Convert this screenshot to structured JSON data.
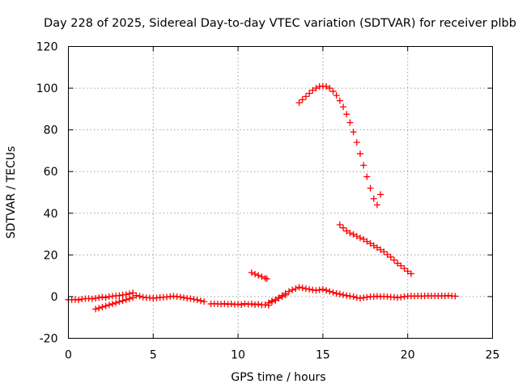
{
  "chart_data": {
    "type": "scatter",
    "title": "Day 228 of 2025, Sidereal Day-to-day VTEC variation (SDTVAR) for receiver plbb",
    "xlabel": "GPS time / hours",
    "ylabel": "SDTVAR / TECUs",
    "xlim": [
      0,
      25
    ],
    "ylim": [
      -20,
      120
    ],
    "xticks": [
      "0",
      "5",
      "10",
      "15",
      "20",
      "25"
    ],
    "yticks": [
      "-20",
      "0",
      "20",
      "40",
      "60",
      "80",
      "100",
      "120"
    ],
    "grid": true,
    "marker": "plus",
    "color": "#ff0000",
    "series": [
      {
        "points": [
          [
            0.0,
            -1.5
          ],
          [
            0.2,
            -1.5
          ],
          [
            0.4,
            -1.4
          ],
          [
            0.6,
            -1.6
          ],
          [
            0.8,
            -1.2
          ],
          [
            1.0,
            -1.0
          ],
          [
            1.2,
            -0.9
          ],
          [
            1.4,
            -1.1
          ],
          [
            1.6,
            -0.8
          ],
          [
            1.8,
            -0.5
          ],
          [
            2.0,
            -0.2
          ],
          [
            2.2,
            -0.5
          ],
          [
            2.4,
            0.0
          ],
          [
            2.6,
            0.2
          ],
          [
            2.8,
            0.4
          ],
          [
            3.0,
            0.5
          ],
          [
            3.2,
            0.8
          ],
          [
            3.4,
            1.0
          ],
          [
            3.6,
            1.4
          ],
          [
            3.8,
            1.8
          ],
          [
            4.0,
            0.5
          ],
          [
            4.2,
            0.2
          ],
          [
            4.4,
            -0.3
          ],
          [
            4.6,
            -0.5
          ],
          [
            4.8,
            -0.6
          ],
          [
            5.0,
            -0.8
          ],
          [
            5.2,
            -0.6
          ],
          [
            5.4,
            -0.4
          ],
          [
            5.6,
            -0.3
          ],
          [
            5.8,
            -0.2
          ],
          [
            6.0,
            0.0
          ],
          [
            6.2,
            0.2
          ],
          [
            6.4,
            0.0
          ],
          [
            6.6,
            -0.2
          ],
          [
            6.8,
            -0.5
          ],
          [
            7.0,
            -0.8
          ],
          [
            7.2,
            -1.0
          ],
          [
            7.4,
            -1.3
          ],
          [
            7.6,
            -1.6
          ],
          [
            7.8,
            -2.0
          ],
          [
            8.0,
            -2.4
          ],
          [
            8.4,
            -3.5
          ],
          [
            8.6,
            -3.4
          ],
          [
            8.8,
            -3.5
          ],
          [
            9.0,
            -3.6
          ],
          [
            9.2,
            -3.4
          ],
          [
            9.4,
            -3.7
          ],
          [
            9.6,
            -3.5
          ],
          [
            9.8,
            -3.8
          ],
          [
            10.0,
            -3.6
          ],
          [
            10.2,
            -3.9
          ],
          [
            10.4,
            -3.4
          ],
          [
            10.6,
            -3.7
          ],
          [
            10.8,
            -3.5
          ],
          [
            11.0,
            -3.9
          ],
          [
            11.2,
            -3.6
          ],
          [
            11.4,
            -4.0
          ],
          [
            11.6,
            -3.9
          ],
          [
            11.8,
            -4.2
          ],
          [
            12.0,
            -2.5
          ],
          [
            12.2,
            -1.8
          ],
          [
            12.4,
            -0.5
          ],
          [
            12.6,
            0.5
          ],
          [
            12.8,
            1.5
          ],
          [
            13.0,
            2.5
          ],
          [
            13.2,
            3.2
          ],
          [
            13.4,
            3.8
          ],
          [
            13.6,
            4.5
          ],
          [
            13.8,
            4.2
          ],
          [
            14.0,
            3.8
          ],
          [
            14.2,
            3.5
          ],
          [
            14.4,
            3.2
          ],
          [
            14.6,
            3.0
          ],
          [
            14.8,
            3.2
          ],
          [
            15.0,
            3.5
          ],
          [
            15.2,
            3.0
          ],
          [
            15.4,
            2.5
          ],
          [
            15.6,
            2.0
          ],
          [
            15.8,
            1.5
          ],
          [
            16.0,
            1.2
          ],
          [
            16.2,
            0.8
          ],
          [
            16.4,
            0.5
          ],
          [
            16.6,
            0.2
          ],
          [
            16.8,
            0.0
          ],
          [
            17.0,
            -0.5
          ],
          [
            17.2,
            -0.8
          ],
          [
            17.4,
            -0.5
          ],
          [
            17.6,
            -0.3
          ],
          [
            17.8,
            0.0
          ],
          [
            18.0,
            0.0
          ],
          [
            18.2,
            0.2
          ],
          [
            18.4,
            0.0
          ],
          [
            18.6,
            0.1
          ],
          [
            18.8,
            0.0
          ],
          [
            19.0,
            -0.2
          ],
          [
            19.2,
            -0.3
          ],
          [
            19.4,
            -0.5
          ],
          [
            19.6,
            -0.3
          ],
          [
            19.8,
            0.0
          ],
          [
            20.0,
            0.2
          ],
          [
            20.2,
            0.3
          ],
          [
            20.4,
            0.2
          ],
          [
            20.6,
            0.3
          ],
          [
            20.8,
            0.2
          ],
          [
            21.0,
            0.3
          ],
          [
            21.2,
            0.4
          ],
          [
            21.4,
            0.3
          ],
          [
            21.6,
            0.4
          ],
          [
            21.8,
            0.3
          ],
          [
            22.0,
            0.4
          ],
          [
            22.2,
            0.3
          ],
          [
            22.4,
            0.5
          ],
          [
            22.6,
            0.3
          ],
          [
            22.8,
            0.2
          ]
        ]
      },
      {
        "points": [
          [
            1.6,
            -6.0
          ],
          [
            1.8,
            -5.5
          ],
          [
            2.0,
            -5.0
          ],
          [
            2.2,
            -4.5
          ],
          [
            2.4,
            -4.0
          ],
          [
            2.6,
            -3.5
          ],
          [
            2.8,
            -3.0
          ],
          [
            3.0,
            -2.5
          ],
          [
            3.2,
            -2.0
          ],
          [
            3.4,
            -1.5
          ],
          [
            3.6,
            -1.0
          ],
          [
            3.8,
            -0.5
          ]
        ]
      },
      {
        "points": [
          [
            11.8,
            -3.0
          ],
          [
            12.0,
            -2.0
          ],
          [
            12.2,
            -1.5
          ],
          [
            12.4,
            -0.8
          ],
          [
            12.6,
            0.0
          ],
          [
            12.8,
            0.8
          ]
        ]
      },
      {
        "points": [
          [
            10.8,
            11.5
          ],
          [
            11.0,
            10.8
          ],
          [
            11.2,
            10.2
          ],
          [
            11.4,
            9.5
          ],
          [
            11.6,
            8.8
          ],
          [
            11.7,
            8.5
          ]
        ]
      },
      {
        "points": [
          [
            13.6,
            93.0
          ],
          [
            13.8,
            94.5
          ],
          [
            14.0,
            96.0
          ],
          [
            14.2,
            97.5
          ],
          [
            14.4,
            99.0
          ],
          [
            14.6,
            100.0
          ],
          [
            14.8,
            100.8
          ],
          [
            15.0,
            101.0
          ],
          [
            15.2,
            100.8
          ],
          [
            15.4,
            100.0
          ],
          [
            15.6,
            98.5
          ],
          [
            15.8,
            96.5
          ],
          [
            16.0,
            94.0
          ],
          [
            16.2,
            91.0
          ],
          [
            16.4,
            87.5
          ],
          [
            16.6,
            83.5
          ],
          [
            16.8,
            79.0
          ],
          [
            17.0,
            74.0
          ],
          [
            17.2,
            68.5
          ],
          [
            17.4,
            63.0
          ],
          [
            17.6,
            57.5
          ],
          [
            17.8,
            52.0
          ],
          [
            18.0,
            47.0
          ],
          [
            18.2,
            44.0
          ],
          [
            18.4,
            49.0
          ]
        ]
      },
      {
        "points": [
          [
            16.0,
            34.5
          ],
          [
            16.2,
            33.0
          ],
          [
            16.4,
            31.5
          ],
          [
            16.6,
            30.5
          ],
          [
            16.8,
            29.8
          ],
          [
            17.0,
            29.0
          ],
          [
            17.2,
            28.2
          ],
          [
            17.4,
            27.5
          ],
          [
            17.6,
            26.5
          ],
          [
            17.8,
            25.5
          ],
          [
            18.0,
            24.5
          ],
          [
            18.2,
            23.5
          ],
          [
            18.4,
            22.5
          ],
          [
            18.6,
            21.5
          ],
          [
            18.8,
            20.2
          ],
          [
            19.0,
            19.0
          ],
          [
            19.2,
            17.5
          ],
          [
            19.4,
            16.0
          ],
          [
            19.6,
            14.8
          ],
          [
            19.8,
            13.5
          ],
          [
            20.0,
            12.2
          ],
          [
            20.2,
            11.0
          ]
        ]
      }
    ]
  }
}
